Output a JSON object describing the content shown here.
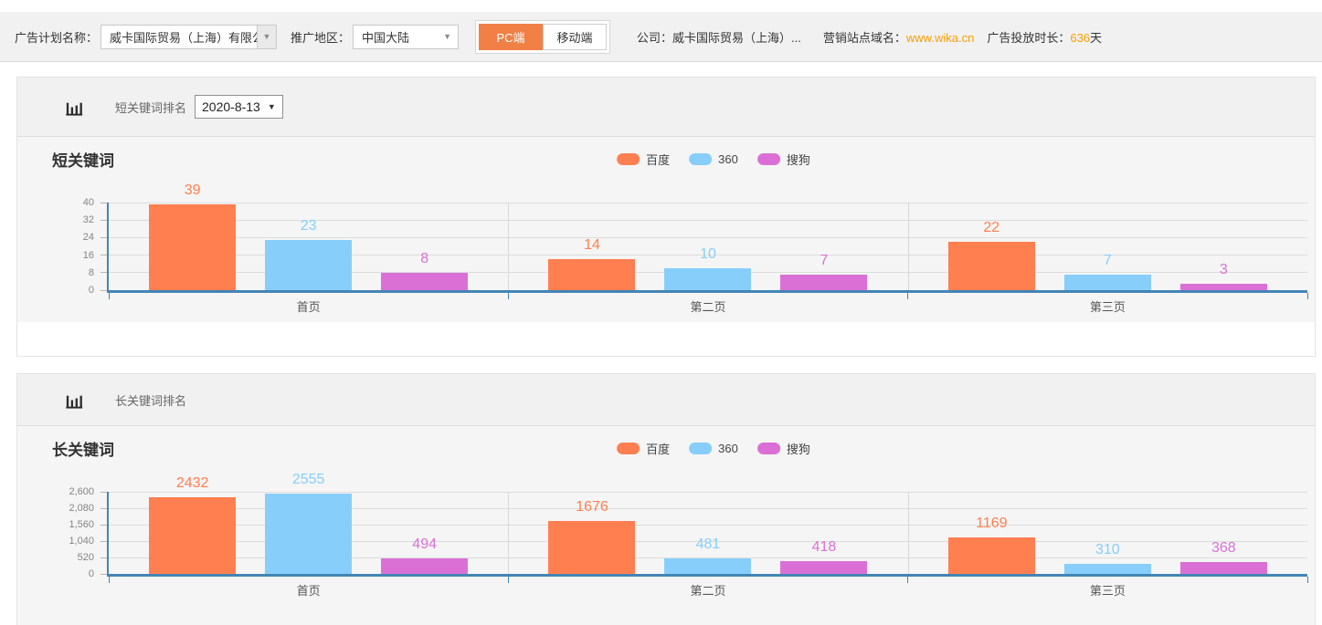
{
  "topbar": {
    "plan_label": "广告计划名称：",
    "plan_value": "威卡国际贸易（上海）有限公",
    "region_label": "推广地区：",
    "region_value": "中国大陆",
    "device_tabs": [
      {
        "label": "PC端",
        "active": true
      },
      {
        "label": "移动端",
        "active": false
      }
    ],
    "company_label": "公司：",
    "company_value": "威卡国际贸易（上海）...",
    "domain_label": "营销站点域名：",
    "domain_value": "www.wika.cn",
    "duration_label": "广告投放时长：",
    "duration_value": "636",
    "duration_unit": "天"
  },
  "sections": [
    {
      "header_label": "短关键词排名",
      "date_value": "2020-8-13"
    },
    {
      "header_label": "长关键词排名"
    }
  ],
  "chart_data": [
    {
      "type": "bar",
      "title": "短关键词",
      "categories": [
        "首页",
        "第二页",
        "第三页"
      ],
      "series": [
        {
          "name": "百度",
          "color": "#FF7F50",
          "values": [
            39,
            14,
            22
          ]
        },
        {
          "name": "360",
          "color": "#87CEFA",
          "values": [
            23,
            10,
            7
          ]
        },
        {
          "name": "搜狗",
          "color": "#DA70D6",
          "values": [
            8,
            7,
            3
          ]
        }
      ],
      "ylim": [
        0,
        40
      ],
      "yticks": [
        0,
        8,
        16,
        24,
        32,
        40
      ],
      "ytick_labels": [
        "0",
        "8",
        "16",
        "24",
        "32",
        "40"
      ],
      "legend_position": "top",
      "grid": true
    },
    {
      "type": "bar",
      "title": "长关键词",
      "categories": [
        "首页",
        "第二页",
        "第三页"
      ],
      "series": [
        {
          "name": "百度",
          "color": "#FF7F50",
          "values": [
            2432,
            1676,
            1169
          ]
        },
        {
          "name": "360",
          "color": "#87CEFA",
          "values": [
            2555,
            481,
            310
          ]
        },
        {
          "name": "搜狗",
          "color": "#DA70D6",
          "values": [
            494,
            418,
            368
          ]
        }
      ],
      "ylim": [
        0,
        2600
      ],
      "yticks": [
        0,
        520,
        1040,
        1560,
        2080,
        2600
      ],
      "ytick_labels": [
        "0",
        "520",
        "1,040",
        "1,560",
        "2,080",
        "2,600"
      ],
      "legend_position": "top",
      "grid": true
    }
  ],
  "colors": {
    "accent_orange": "#F08045",
    "link_orange": "#F99E00",
    "axis_blue": "#4385B5",
    "bar_baidu": "#FF7F50",
    "bar_360": "#87CEFA",
    "bar_sogou": "#DA70D6",
    "plot_background": "#f5f5f5"
  }
}
